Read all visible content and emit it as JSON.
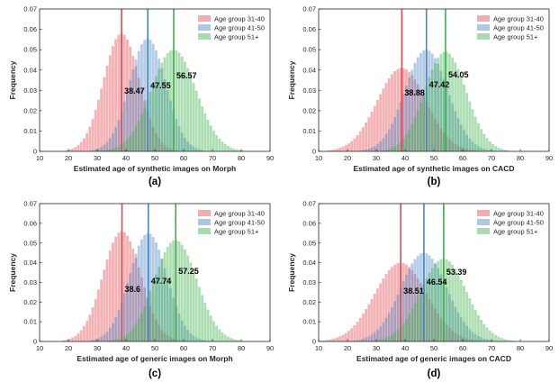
{
  "chart_data": [
    {
      "type": "histogram",
      "caption": "(a)",
      "xlabel": "Estimated age of synthetic images on Morph",
      "ylabel": "Frequency",
      "xlim": [
        10,
        90
      ],
      "ylim": [
        0,
        0.07
      ],
      "xticks": [
        "10",
        "20",
        "30",
        "40",
        "50",
        "60",
        "70",
        "80",
        "90"
      ],
      "yticks": [
        "0",
        "0.01",
        "0.02",
        "0.03",
        "0.04",
        "0.05",
        "0.06",
        "0.07"
      ],
      "legend_position": "top-right",
      "series": [
        {
          "name": "Age group 31-40",
          "color": "#e8474d",
          "mean": 38.47,
          "mean_label": "38.47",
          "sd": 6.2,
          "peak": 0.058
        },
        {
          "name": "Age group 41-50",
          "color": "#4a86c6",
          "mean": 47.55,
          "mean_label": "47.55",
          "sd": 6.3,
          "peak": 0.0555
        },
        {
          "name": "Age group 51+",
          "color": "#3fb04a",
          "mean": 56.57,
          "mean_label": "56.57",
          "sd": 7.8,
          "peak": 0.05
        }
      ]
    },
    {
      "type": "histogram",
      "caption": "(b)",
      "xlabel": "Estimated age of synthetic images on CACD",
      "ylabel": "Frequency",
      "xlim": [
        10,
        90
      ],
      "ylim": [
        0,
        0.07
      ],
      "xticks": [
        "10",
        "20",
        "30",
        "40",
        "50",
        "60",
        "70",
        "80",
        "90"
      ],
      "yticks": [
        "0",
        "0.01",
        "0.02",
        "0.03",
        "0.04",
        "0.05",
        "0.06",
        "0.07"
      ],
      "legend_position": "top-right",
      "series": [
        {
          "name": "Age group 31-40",
          "color": "#e8474d",
          "mean": 38.88,
          "mean_label": "38.88",
          "sd": 8.5,
          "peak": 0.041
        },
        {
          "name": "Age group 41-50",
          "color": "#4a86c6",
          "mean": 47.42,
          "mean_label": "47.42",
          "sd": 7.4,
          "peak": 0.05
        },
        {
          "name": "Age group 51+",
          "color": "#3fb04a",
          "mean": 54.05,
          "mean_label": "54.05",
          "sd": 7.2,
          "peak": 0.049
        }
      ]
    },
    {
      "type": "histogram",
      "caption": "(c)",
      "xlabel": "Estimated age of generic images on Morph",
      "ylabel": "Frequency",
      "xlim": [
        10,
        90
      ],
      "ylim": [
        0,
        0.07
      ],
      "xticks": [
        "10",
        "20",
        "30",
        "40",
        "50",
        "60",
        "70",
        "80",
        "90"
      ],
      "yticks": [
        "0",
        "0.01",
        "0.02",
        "0.03",
        "0.04",
        "0.05",
        "0.06",
        "0.07"
      ],
      "legend_position": "top-right",
      "series": [
        {
          "name": "Age group 31-40",
          "color": "#e8474d",
          "mean": 38.6,
          "mean_label": "38.6",
          "sd": 6.6,
          "peak": 0.056
        },
        {
          "name": "Age group 41-50",
          "color": "#4a86c6",
          "mean": 47.74,
          "mean_label": "47.74",
          "sd": 6.5,
          "peak": 0.055
        },
        {
          "name": "Age group 51+",
          "color": "#3fb04a",
          "mean": 57.25,
          "mean_label": "57.25",
          "sd": 7.4,
          "peak": 0.0515
        }
      ]
    },
    {
      "type": "histogram",
      "caption": "(d)",
      "xlabel": "Estimated age of generic images on CACD",
      "ylabel": "Frequency",
      "xlim": [
        10,
        90
      ],
      "ylim": [
        0,
        0.07
      ],
      "xticks": [
        "10",
        "20",
        "30",
        "40",
        "50",
        "60",
        "70",
        "80",
        "90"
      ],
      "yticks": [
        "0",
        "0.01",
        "0.02",
        "0.03",
        "0.04",
        "0.05",
        "0.06",
        "0.07"
      ],
      "legend_position": "top-right",
      "series": [
        {
          "name": "Age group 31-40",
          "color": "#e8474d",
          "mean": 38.51,
          "mean_label": "38.51",
          "sd": 9.0,
          "peak": 0.04
        },
        {
          "name": "Age group 41-50",
          "color": "#4a86c6",
          "mean": 46.54,
          "mean_label": "46.54",
          "sd": 8.0,
          "peak": 0.045
        },
        {
          "name": "Age group 51+",
          "color": "#3fb04a",
          "mean": 53.39,
          "mean_label": "53.39",
          "sd": 8.0,
          "peak": 0.042
        }
      ]
    }
  ]
}
